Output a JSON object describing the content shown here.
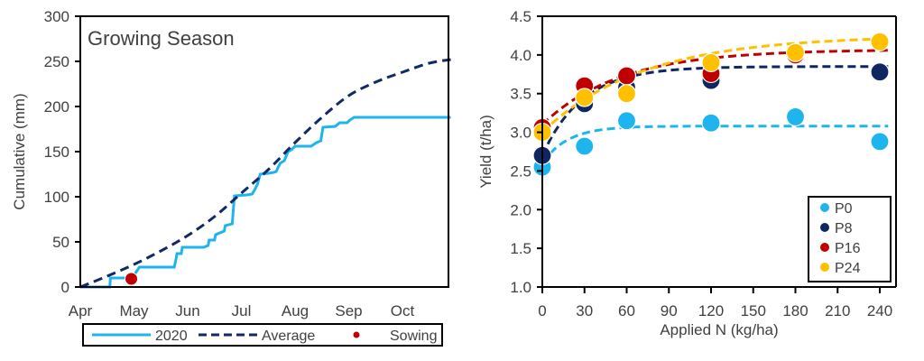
{
  "chart_data": [
    {
      "type": "line",
      "title": "Growing Season",
      "xlabel": "",
      "ylabel": "Cumulative (mm)",
      "ylim": [
        0,
        300
      ],
      "yticks": [
        0,
        50,
        100,
        150,
        200,
        250,
        300
      ],
      "xlim_months": [
        0,
        7
      ],
      "xtick_labels": [
        "Apr",
        "May",
        "Jun",
        "Jul",
        "Aug",
        "Sep",
        "Oct"
      ],
      "grid": false,
      "legend_position": "bottom",
      "series": [
        {
          "name": "2020",
          "style": "solid",
          "color": "#1EB4EE",
          "step": true,
          "points": [
            [
              0,
              0
            ],
            [
              0.55,
              0
            ],
            [
              0.56,
              10
            ],
            [
              0.95,
              10
            ],
            [
              1.0,
              13
            ],
            [
              1.1,
              22
            ],
            [
              1.75,
              22
            ],
            [
              1.78,
              30
            ],
            [
              1.8,
              37
            ],
            [
              1.88,
              37
            ],
            [
              1.9,
              44
            ],
            [
              2.3,
              44
            ],
            [
              2.38,
              46
            ],
            [
              2.4,
              52
            ],
            [
              2.5,
              52
            ],
            [
              2.52,
              58
            ],
            [
              2.6,
              60
            ],
            [
              2.68,
              62
            ],
            [
              2.7,
              68
            ],
            [
              2.83,
              70
            ],
            [
              2.87,
              101
            ],
            [
              3.1,
              102
            ],
            [
              3.2,
              103
            ],
            [
              3.25,
              108
            ],
            [
              3.3,
              114
            ],
            [
              3.35,
              125
            ],
            [
              3.5,
              126
            ],
            [
              3.6,
              127
            ],
            [
              3.65,
              128
            ],
            [
              3.72,
              137
            ],
            [
              3.8,
              140
            ],
            [
              3.87,
              150
            ],
            [
              3.93,
              152
            ],
            [
              4.0,
              156
            ],
            [
              4.3,
              156
            ],
            [
              4.4,
              160
            ],
            [
              4.48,
              162
            ],
            [
              4.52,
              177
            ],
            [
              4.75,
              178
            ],
            [
              4.83,
              182
            ],
            [
              4.97,
              182
            ],
            [
              5.02,
              185
            ],
            [
              5.1,
              188
            ],
            [
              5.5,
              188
            ],
            [
              6.2,
              188
            ],
            [
              6.9,
              188
            ]
          ]
        },
        {
          "name": "Average",
          "style": "dashed",
          "color": "#0F2A66",
          "points": [
            [
              0,
              0
            ],
            [
              0.5,
              12
            ],
            [
              1,
              25
            ],
            [
              1.5,
              40
            ],
            [
              2,
              57
            ],
            [
              2.5,
              78
            ],
            [
              3,
              104
            ],
            [
              3.5,
              130
            ],
            [
              4,
              160
            ],
            [
              4.5,
              188
            ],
            [
              5,
              212
            ],
            [
              5.5,
              227
            ],
            [
              6,
              238
            ],
            [
              6.5,
              248
            ],
            [
              6.9,
              252
            ]
          ]
        },
        {
          "name": "Sowing",
          "style": "marker",
          "color": "#C00000",
          "points": [
            [
              0.95,
              9
            ]
          ]
        }
      ]
    },
    {
      "type": "scatter",
      "title": "",
      "xlabel": "Applied N (kg/ha)",
      "ylabel": "Yield (t/ha)",
      "xlim": [
        0,
        240
      ],
      "ylim": [
        1.0,
        4.5
      ],
      "xticks": [
        0,
        30,
        60,
        90,
        120,
        150,
        180,
        210,
        240
      ],
      "yticks": [
        "1.0",
        "1.5",
        "2.0",
        "2.5",
        "3.0",
        "3.5",
        "4.0",
        "4.5"
      ],
      "grid": false,
      "legend_position": "bottom-right",
      "x": [
        0,
        30,
        60,
        120,
        180,
        240
      ],
      "series": [
        {
          "name": "P0",
          "color": "#1EB4EE",
          "values": [
            2.55,
            2.82,
            3.15,
            3.12,
            3.2,
            2.88
          ],
          "fit": {
            "plateau": 3.08,
            "start": 2.6,
            "rate": 0.055
          }
        },
        {
          "name": "P8",
          "color": "#0F2660",
          "values": [
            2.7,
            3.37,
            3.58,
            3.67,
            null,
            3.78
          ],
          "fit": {
            "plateau": 3.85,
            "start": 2.7,
            "rate": 0.035
          }
        },
        {
          "name": "P16",
          "color": "#C00000",
          "values": [
            3.06,
            3.6,
            3.73,
            3.76,
            4.0,
            null
          ],
          "fit": {
            "plateau": 4.07,
            "start": 3.1,
            "rate": 0.018
          }
        },
        {
          "name": "P24",
          "color": "#FFC000",
          "values": [
            3.0,
            3.45,
            3.5,
            3.9,
            4.03,
            4.17
          ],
          "fit": {
            "plateau": 4.25,
            "start": 3.0,
            "rate": 0.014
          }
        }
      ]
    }
  ]
}
